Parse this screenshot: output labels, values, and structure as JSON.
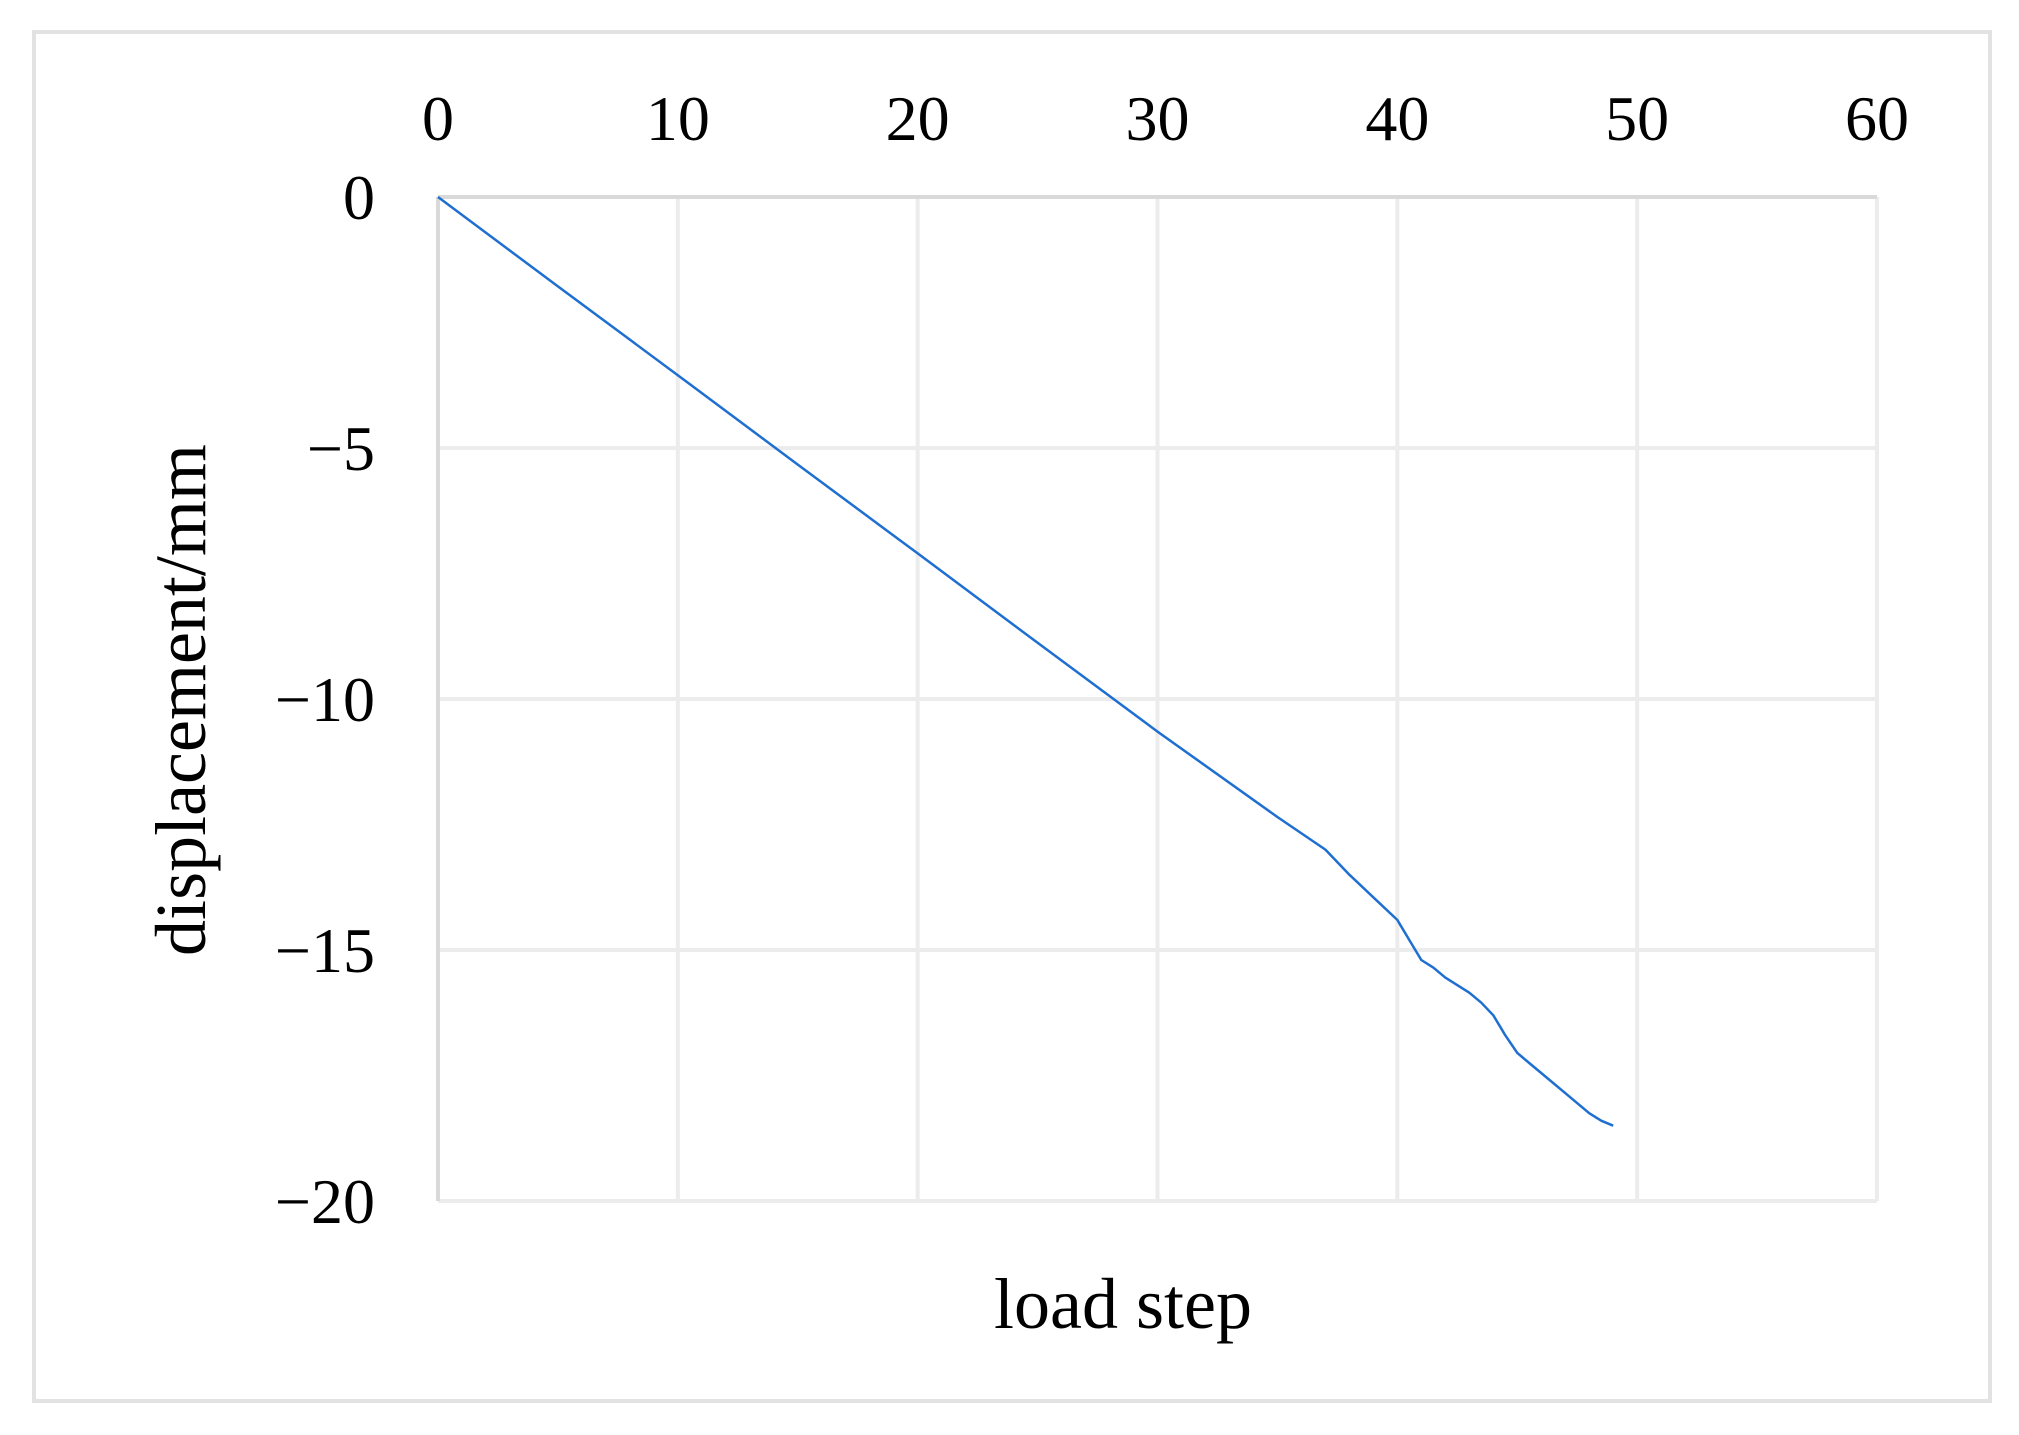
{
  "chart_data": {
    "type": "line",
    "title": "",
    "xlabel": "load step",
    "ylabel": "displacement/mm",
    "xlim": [
      0,
      60
    ],
    "ylim": [
      -20,
      0
    ],
    "x_ticks": [
      "0",
      "10",
      "20",
      "30",
      "40",
      "50",
      "60"
    ],
    "y_ticks": [
      "0",
      "−5",
      "−10",
      "−15",
      "−20"
    ],
    "x_axis_position": "top",
    "grid": true,
    "legend": "none",
    "series": [
      {
        "color": "#1f6fd1",
        "x": [
          0,
          5,
          10,
          15,
          20,
          25,
          30,
          35,
          37,
          38,
          39,
          40,
          40.5,
          41,
          41.5,
          42,
          43,
          43.5,
          44,
          44.5,
          45,
          45.5,
          46,
          47,
          48,
          48.5,
          49
        ],
        "y": [
          0,
          -1.78,
          -3.55,
          -5.33,
          -7.1,
          -8.88,
          -10.65,
          -12.35,
          -13.0,
          -13.5,
          -13.95,
          -14.4,
          -14.8,
          -15.2,
          -15.35,
          -15.55,
          -15.85,
          -16.05,
          -16.3,
          -16.7,
          -17.05,
          -17.25,
          -17.45,
          -17.85,
          -18.25,
          -18.4,
          -18.5
        ]
      }
    ]
  }
}
